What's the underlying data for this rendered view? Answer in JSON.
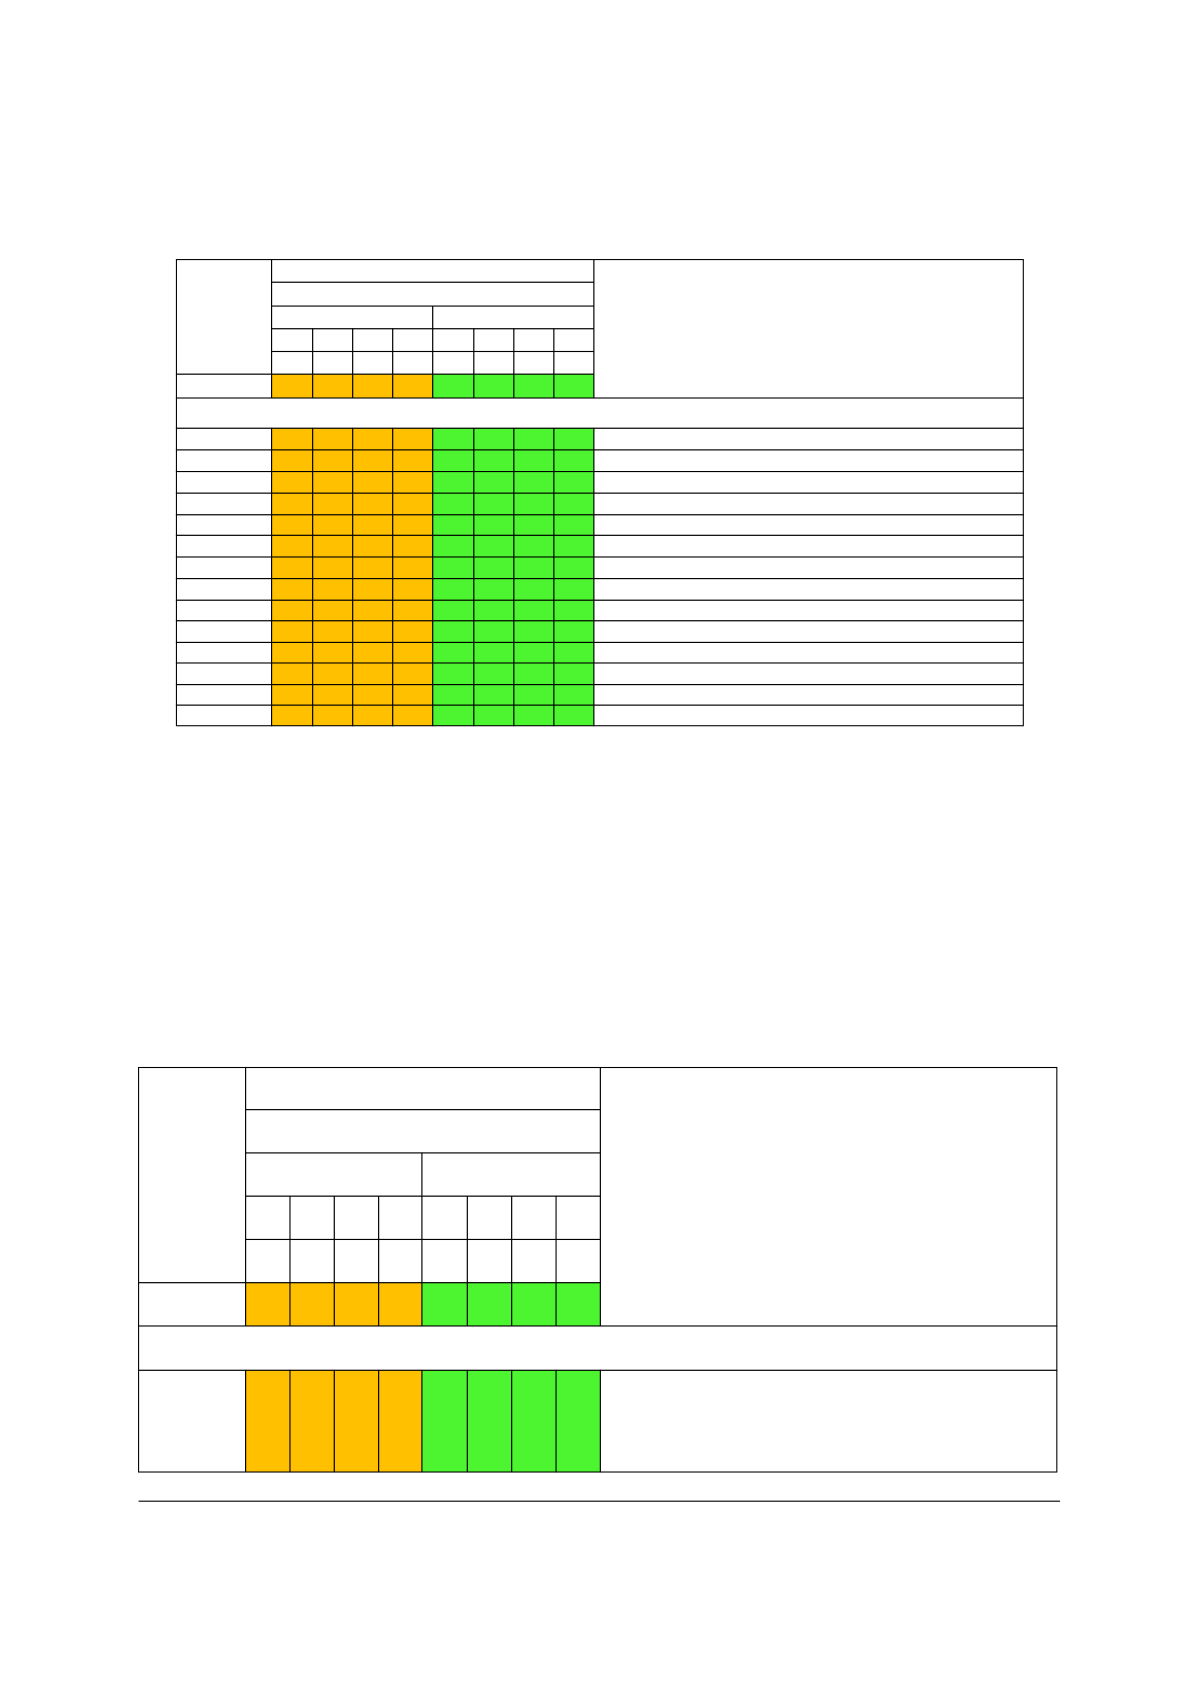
{
  "colors": {
    "orange": "#ffc000",
    "green": "#4cf52f"
  }
}
